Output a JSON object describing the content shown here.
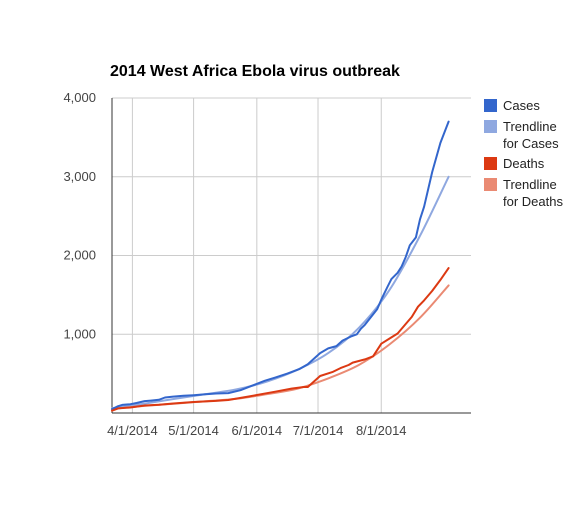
{
  "chart_data": {
    "type": "line",
    "title": "2014 West Africa Ebola virus outbreak",
    "xlabel": "",
    "ylabel": "",
    "x_range": [
      "2014-03-22",
      "2014-09-14"
    ],
    "ylim": [
      0,
      4000
    ],
    "y_ticks": [
      1000,
      2000,
      3000,
      4000
    ],
    "y_tick_labels": [
      "1,000",
      "2,000",
      "3,000",
      "4,000"
    ],
    "x_ticks": [
      "2014-04-01",
      "2014-05-01",
      "2014-06-01",
      "2014-07-01",
      "2014-08-01"
    ],
    "x_tick_labels": [
      "4/1/2014",
      "5/1/2014",
      "6/1/2014",
      "7/1/2014",
      "8/1/2014"
    ],
    "grid": true,
    "legend_position": "right",
    "series": [
      {
        "name": "Cases",
        "color": "#3366cc",
        "style": "solid",
        "points": [
          [
            "2014-03-22",
            49
          ],
          [
            "2014-03-25",
            86
          ],
          [
            "2014-03-27",
            103
          ],
          [
            "2014-03-31",
            112
          ],
          [
            "2014-04-03",
            127
          ],
          [
            "2014-04-07",
            151
          ],
          [
            "2014-04-10",
            157
          ],
          [
            "2014-04-14",
            168
          ],
          [
            "2014-04-17",
            197
          ],
          [
            "2014-04-21",
            208
          ],
          [
            "2014-04-26",
            218
          ],
          [
            "2014-05-01",
            226
          ],
          [
            "2014-05-06",
            236
          ],
          [
            "2014-05-12",
            248
          ],
          [
            "2014-05-18",
            253
          ],
          [
            "2014-05-24",
            290
          ],
          [
            "2014-05-30",
            350
          ],
          [
            "2014-06-05",
            410
          ],
          [
            "2014-06-10",
            450
          ],
          [
            "2014-06-16",
            500
          ],
          [
            "2014-06-22",
            560
          ],
          [
            "2014-06-26",
            620
          ],
          [
            "2014-07-02",
            760
          ],
          [
            "2014-07-06",
            820
          ],
          [
            "2014-07-10",
            850
          ],
          [
            "2014-07-13",
            920
          ],
          [
            "2014-07-17",
            970
          ],
          [
            "2014-07-20",
            1000
          ],
          [
            "2014-07-22",
            1070
          ],
          [
            "2014-07-24",
            1120
          ],
          [
            "2014-07-27",
            1220
          ],
          [
            "2014-07-30",
            1320
          ],
          [
            "2014-08-01",
            1440
          ],
          [
            "2014-08-04",
            1600
          ],
          [
            "2014-08-06",
            1700
          ],
          [
            "2014-08-09",
            1780
          ],
          [
            "2014-08-11",
            1860
          ],
          [
            "2014-08-13",
            1980
          ],
          [
            "2014-08-15",
            2130
          ],
          [
            "2014-08-18",
            2230
          ],
          [
            "2014-08-20",
            2460
          ],
          [
            "2014-08-22",
            2620
          ],
          [
            "2014-08-26",
            3060
          ],
          [
            "2014-08-30",
            3430
          ],
          [
            "2014-09-03",
            3700
          ]
        ]
      },
      {
        "name": "Trendline for Cases",
        "color": "#8fa8e0",
        "style": "smooth",
        "points": [
          [
            "2014-03-22",
            60
          ],
          [
            "2014-04-07",
            120
          ],
          [
            "2014-04-22",
            180
          ],
          [
            "2014-05-07",
            240
          ],
          [
            "2014-05-22",
            300
          ],
          [
            "2014-06-06",
            400
          ],
          [
            "2014-06-21",
            550
          ],
          [
            "2014-07-06",
            760
          ],
          [
            "2014-07-21",
            1080
          ],
          [
            "2014-08-05",
            1560
          ],
          [
            "2014-08-20",
            2250
          ],
          [
            "2014-09-03",
            3000
          ]
        ]
      },
      {
        "name": "Deaths",
        "color": "#dc3912",
        "style": "solid",
        "points": [
          [
            "2014-03-22",
            29
          ],
          [
            "2014-03-25",
            59
          ],
          [
            "2014-03-31",
            70
          ],
          [
            "2014-04-07",
            95
          ],
          [
            "2014-04-14",
            106
          ],
          [
            "2014-04-21",
            121
          ],
          [
            "2014-05-01",
            140
          ],
          [
            "2014-05-12",
            154
          ],
          [
            "2014-05-18",
            165
          ],
          [
            "2014-05-28",
            210
          ],
          [
            "2014-06-10",
            270
          ],
          [
            "2014-06-18",
            310
          ],
          [
            "2014-06-24",
            330
          ],
          [
            "2014-06-26",
            330
          ],
          [
            "2014-07-02",
            470
          ],
          [
            "2014-07-08",
            520
          ],
          [
            "2014-07-12",
            570
          ],
          [
            "2014-07-16",
            610
          ],
          [
            "2014-07-18",
            640
          ],
          [
            "2014-07-21",
            660
          ],
          [
            "2014-07-24",
            680
          ],
          [
            "2014-07-28",
            720
          ],
          [
            "2014-08-01",
            880
          ],
          [
            "2014-08-06",
            960
          ],
          [
            "2014-08-09",
            1010
          ],
          [
            "2014-08-13",
            1130
          ],
          [
            "2014-08-16",
            1220
          ],
          [
            "2014-08-19",
            1350
          ],
          [
            "2014-08-22",
            1430
          ],
          [
            "2014-08-26",
            1550
          ],
          [
            "2014-08-30",
            1690
          ],
          [
            "2014-09-03",
            1840
          ]
        ]
      },
      {
        "name": "Trendline for Deaths",
        "color": "#ea8a73",
        "style": "smooth",
        "points": [
          [
            "2014-03-22",
            50
          ],
          [
            "2014-04-07",
            90
          ],
          [
            "2014-04-22",
            120
          ],
          [
            "2014-05-07",
            150
          ],
          [
            "2014-05-22",
            180
          ],
          [
            "2014-06-06",
            240
          ],
          [
            "2014-06-21",
            310
          ],
          [
            "2014-07-06",
            440
          ],
          [
            "2014-07-21",
            610
          ],
          [
            "2014-08-05",
            870
          ],
          [
            "2014-08-20",
            1210
          ],
          [
            "2014-09-03",
            1620
          ]
        ]
      }
    ]
  }
}
